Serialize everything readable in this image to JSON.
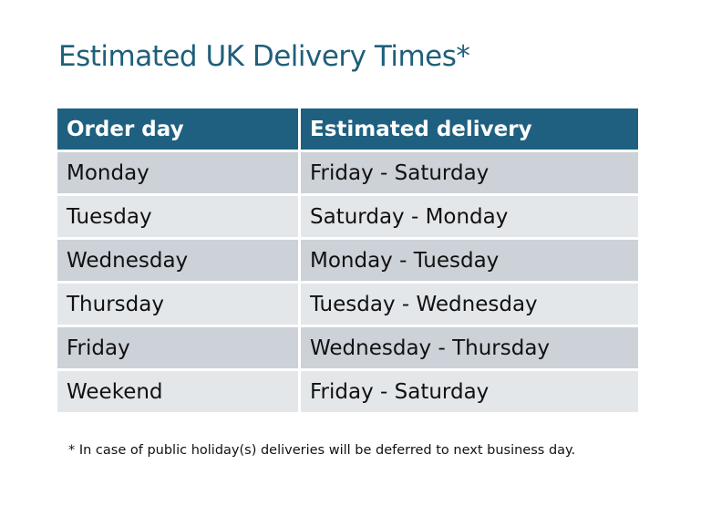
{
  "title": "Estimated UK Delivery Times*",
  "table": {
    "headers": [
      "Order day",
      "Estimated delivery"
    ],
    "rows": [
      [
        "Monday",
        "Friday - Saturday"
      ],
      [
        "Tuesday",
        "Saturday - Monday"
      ],
      [
        "Wednesday",
        "Monday - Tuesday"
      ],
      [
        "Thursday",
        "Tuesday - Wednesday"
      ],
      [
        "Friday",
        "Wednesday - Thursday"
      ],
      [
        "Weekend",
        "Friday - Saturday"
      ]
    ]
  },
  "footnote": "* In case of public holiday(s) deliveries will be deferred to next business day.",
  "colors": {
    "header": "#1f6080",
    "title": "#1f5f7a",
    "row_dark": "#cdd1d8",
    "row_light": "#e4e7ea"
  }
}
